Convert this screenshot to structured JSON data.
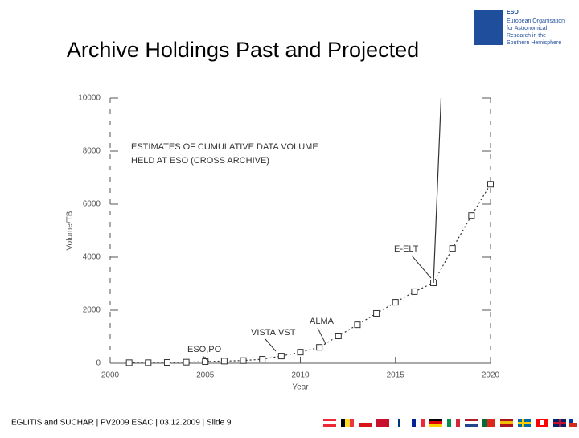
{
  "slide": {
    "title": "Archive Holdings Past and Projected",
    "footer": "EGLITIS and SUCHAR | PV2009 ESAC | 03.12.2009 | Slide 9",
    "logo_name": "ESO",
    "logo_text": [
      "European Organisation",
      "for Astronomical",
      "Research in the",
      "Southern Hemisphere"
    ]
  },
  "chart_data": {
    "type": "line",
    "xlabel": "Year",
    "ylabel": "Volume/TB",
    "xlim": [
      2000,
      2020
    ],
    "ylim": [
      0,
      10000
    ],
    "xticks": [
      2000,
      2005,
      2010,
      2015,
      2020
    ],
    "yticks": [
      0,
      2000,
      4000,
      6000,
      8000,
      10000
    ],
    "annotations": [
      "ESTIMATES OF CUMULATIVE DATA VOLUME",
      "HELD AT ESO (CROSS ARCHIVE)",
      "E-ELT",
      "ALMA",
      "VISTA,VST",
      "ESO,PO"
    ],
    "series": [
      {
        "color": "#333333",
        "marker": "square",
        "dash": "2,3",
        "x": [
          2001,
          2002,
          2003,
          2004,
          2005,
          2006,
          2007,
          2008,
          2009,
          2010,
          2011,
          2012,
          2013,
          2014,
          2015,
          2016,
          2017,
          2018,
          2019,
          2020
        ],
        "values": [
          20,
          20,
          30,
          40,
          60,
          80,
          100,
          150,
          270,
          420,
          600,
          1030,
          1450,
          1880,
          2300,
          2700,
          3030,
          4330,
          5570,
          6750
        ]
      },
      {
        "color": "#333333",
        "marker": "none",
        "dash": "none",
        "x": [
          2017,
          2017.4
        ],
        "values": [
          3030,
          10000
        ]
      }
    ]
  }
}
